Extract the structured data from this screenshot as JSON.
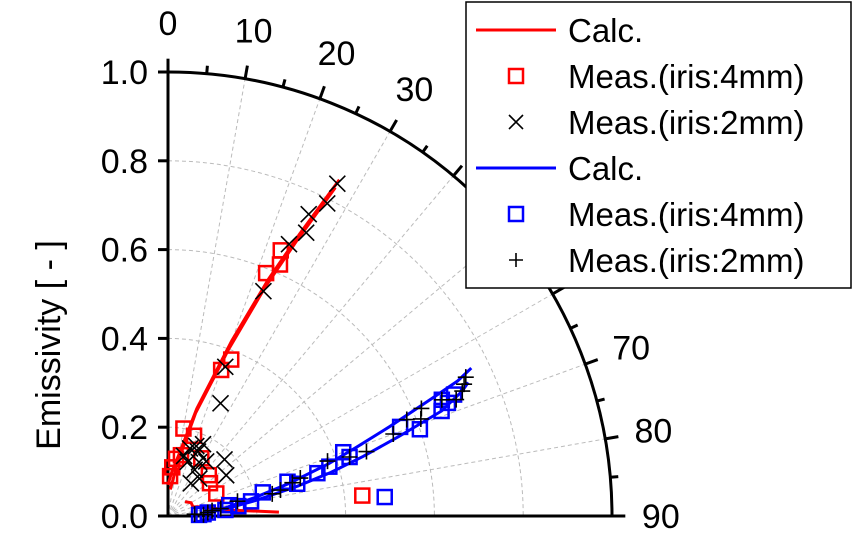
{
  "chart_data": {
    "type": "scatter",
    "coordinate_system": "polar",
    "angle_unit": "degrees",
    "ylabel": "Emissivity [ - ]",
    "r_range": [
      0.0,
      1.0
    ],
    "r_ticks": [
      "0.0",
      "0.2",
      "0.4",
      "0.6",
      "0.8",
      "1.0"
    ],
    "theta_range": [
      0,
      90
    ],
    "theta_ticks": [
      "0",
      "10",
      "20",
      "30",
      "70",
      "80",
      "90"
    ],
    "grid": true,
    "legend_position": "top-right",
    "colors": {
      "red": "#ff0000",
      "blue": "#0000ff",
      "black": "#000000",
      "grid": "#bbbbbb"
    },
    "series": [
      {
        "name": "Calc.",
        "kind": "line",
        "color": "#ff0000",
        "branches": [
          [
            [
              0.5,
              0.07
            ],
            [
              2,
              0.08
            ],
            [
              5,
              0.1
            ],
            [
              10,
              0.14
            ],
            [
              15,
              0.25
            ],
            [
              20,
              0.42
            ],
            [
              23,
              0.58
            ],
            [
              25,
              0.7
            ],
            [
              27,
              0.85
            ]
          ],
          [
            [
              5,
              0.06
            ],
            [
              10,
              0.12
            ],
            [
              15,
              0.24
            ],
            [
              20,
              0.4
            ],
            [
              23,
              0.56
            ],
            [
              25,
              0.68
            ],
            [
              27,
              0.83
            ]
          ],
          [
            [
              50,
              0.05
            ],
            [
              60,
              0.06
            ],
            [
              70,
              0.06
            ],
            [
              75,
              0.08
            ],
            [
              80,
              0.1
            ],
            [
              85,
              0.15
            ],
            [
              88,
              0.25
            ]
          ]
        ]
      },
      {
        "name": "Meas.(iris:4mm)",
        "kind": "marker",
        "marker": "square",
        "color": "#ff0000",
        "points": [
          [
            3,
            0.09
          ],
          [
            5,
            0.11
          ],
          [
            8,
            0.13
          ],
          [
            12,
            0.14
          ],
          [
            10,
            0.2
          ],
          [
            18,
            0.19
          ],
          [
            20,
            0.35
          ],
          [
            22,
            0.38
          ],
          [
            22,
            0.59
          ],
          [
            24,
            0.62
          ],
          [
            23,
            0.65
          ],
          [
            30,
            0.15
          ],
          [
            45,
            0.13
          ],
          [
            52,
            0.12
          ],
          [
            65,
            0.12
          ],
          [
            84,
            0.44
          ]
        ]
      },
      {
        "name": "Meas.(iris:2mm)",
        "kind": "marker",
        "marker": "x",
        "color": "#000000",
        "points": [
          [
            15,
            0.14
          ],
          [
            20,
            0.13
          ],
          [
            18,
            0.16
          ],
          [
            25,
            0.16
          ],
          [
            22,
            0.17
          ],
          [
            30,
            0.14
          ],
          [
            26,
            0.18
          ],
          [
            35,
            0.15
          ],
          [
            30,
            0.12
          ],
          [
            40,
            0.11
          ],
          [
            25,
            0.28
          ],
          [
            21,
            0.36
          ],
          [
            23,
            0.55
          ],
          [
            24,
            0.67
          ],
          [
            26,
            0.71
          ],
          [
            25,
            0.75
          ],
          [
            27,
            0.79
          ],
          [
            27,
            0.84
          ],
          [
            55,
            0.16
          ],
          [
            45,
            0.18
          ],
          [
            35,
            0.09
          ]
        ]
      },
      {
        "name": "Calc.",
        "kind": "line",
        "color": "#0000ff",
        "branches": [
          [
            [
              85,
              0.08
            ],
            [
              82,
              0.13
            ],
            [
              78,
              0.2
            ],
            [
              75,
              0.28
            ],
            [
              72,
              0.38
            ],
            [
              70,
              0.45
            ],
            [
              68,
              0.54
            ],
            [
              66,
              0.65
            ],
            [
              65,
              0.72
            ],
            [
              64,
              0.76
            ]
          ],
          [
            [
              86,
              0.08
            ],
            [
              83,
              0.13
            ],
            [
              80,
              0.2
            ],
            [
              77,
              0.3
            ],
            [
              75,
              0.38
            ],
            [
              73,
              0.46
            ],
            [
              71,
              0.55
            ],
            [
              69,
              0.66
            ],
            [
              67,
              0.72
            ],
            [
              66,
              0.74
            ]
          ]
        ]
      },
      {
        "name": "Meas.(iris:4mm)",
        "kind": "marker",
        "marker": "square",
        "color": "#0000ff",
        "points": [
          [
            88,
            0.07
          ],
          [
            87,
            0.08
          ],
          [
            85,
            0.09
          ],
          [
            84,
            0.13
          ],
          [
            80,
            0.14
          ],
          [
            82,
            0.16
          ],
          [
            80,
            0.19
          ],
          [
            76,
            0.22
          ],
          [
            74,
            0.28
          ],
          [
            76,
            0.3
          ],
          [
            74,
            0.35
          ],
          [
            73,
            0.38
          ],
          [
            72,
            0.43
          ],
          [
            70,
            0.42
          ],
          [
            71,
            0.6
          ],
          [
            69,
            0.56
          ],
          [
            69,
            0.66
          ],
          [
            67,
            0.67
          ],
          [
            68,
            0.68
          ],
          [
            67,
            0.7
          ],
          [
            85,
            0.49
          ]
        ]
      },
      {
        "name": "Meas.(iris:2mm)",
        "kind": "marker",
        "marker": "plus",
        "color": "#000000",
        "points": [
          [
            86,
            0.06
          ],
          [
            85,
            0.09
          ],
          [
            83,
            0.1
          ],
          [
            82,
            0.12
          ],
          [
            78,
            0.16
          ],
          [
            78,
            0.24
          ],
          [
            77,
            0.26
          ],
          [
            75,
            0.29
          ],
          [
            74,
            0.31
          ],
          [
            71,
            0.38
          ],
          [
            72,
            0.43
          ],
          [
            72,
            0.47
          ],
          [
            70,
            0.54
          ],
          [
            68,
            0.58
          ],
          [
            69,
            0.61
          ],
          [
            67,
            0.62
          ],
          [
            67,
            0.67
          ],
          [
            68,
            0.7
          ],
          [
            67,
            0.72
          ],
          [
            66,
            0.73
          ],
          [
            65,
            0.74
          ],
          [
            88,
            0.08
          ]
        ]
      }
    ]
  }
}
